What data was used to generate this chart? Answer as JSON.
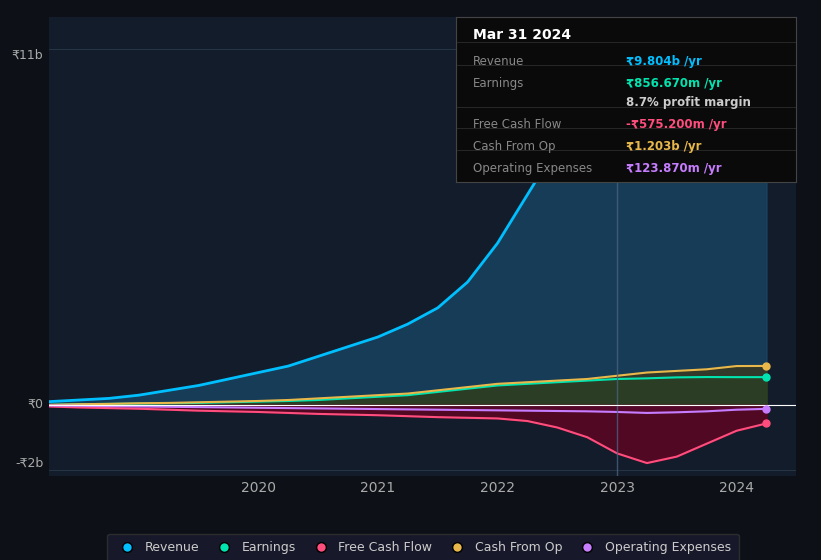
{
  "background_color": "#0d1117",
  "plot_bg_color": "#131c2b",
  "ylabel_top": "₹11b",
  "ylabel_zero": "₹0",
  "ylabel_bottom": "-₹2b",
  "x_ticks": [
    "2020",
    "2021",
    "2022",
    "2023",
    "2024"
  ],
  "legend_items": [
    "Revenue",
    "Earnings",
    "Free Cash Flow",
    "Cash From Op",
    "Operating Expenses"
  ],
  "legend_colors": [
    "#00bfff",
    "#00e5b0",
    "#ff4d7d",
    "#e8b84b",
    "#c77dff"
  ],
  "line_colors": {
    "revenue": "#00bfff",
    "earnings": "#00e5b0",
    "free_cash_flow": "#ff4d7d",
    "cash_from_op": "#e8b84b",
    "operating_expenses": "#c77dff"
  },
  "fill_colors": {
    "revenue": "#1a4a6b",
    "earnings": "#004d44",
    "free_cash_flow": "#6b0020",
    "cash_from_op": "#4d3800",
    "operating_expenses": "#3d2060"
  },
  "info_box": {
    "bg": "#0a0a0a",
    "border": "#444444",
    "title": "Mar 31 2024",
    "rows": [
      {
        "label": "Revenue",
        "value": "₹9.804b /yr",
        "value_color": "#00bfff",
        "bold_part": "₹9.804b"
      },
      {
        "label": "Earnings",
        "value": "₹856.670m /yr",
        "value_color": "#00e5b0",
        "bold_part": "₹856.670m"
      },
      {
        "label": "",
        "value": "8.7% profit margin",
        "value_color": "#cccccc",
        "bold_part": "8.7%"
      },
      {
        "label": "Free Cash Flow",
        "value": "-₹575.200m /yr",
        "value_color": "#ff4d7d",
        "bold_part": "-₹575.200m"
      },
      {
        "label": "Cash From Op",
        "value": "₹1.203b /yr",
        "value_color": "#e8b84b",
        "bold_part": "₹1.203b"
      },
      {
        "label": "Operating Expenses",
        "value": "₹123.870m /yr",
        "value_color": "#c77dff",
        "bold_part": "₹123.870m"
      }
    ]
  },
  "x_data": [
    2018.25,
    2018.5,
    2018.75,
    2019.0,
    2019.25,
    2019.5,
    2019.75,
    2020.0,
    2020.25,
    2020.5,
    2020.75,
    2021.0,
    2021.25,
    2021.5,
    2021.75,
    2022.0,
    2022.25,
    2022.5,
    2022.75,
    2023.0,
    2023.25,
    2023.5,
    2023.75,
    2024.0,
    2024.25
  ],
  "revenue": [
    0.1,
    0.15,
    0.2,
    0.3,
    0.45,
    0.6,
    0.8,
    1.0,
    1.2,
    1.5,
    1.8,
    2.1,
    2.5,
    3.0,
    3.8,
    5.0,
    6.5,
    8.0,
    9.5,
    11.0,
    10.5,
    10.2,
    9.9,
    9.8,
    9.8
  ],
  "earnings": [
    0.0,
    0.02,
    0.03,
    0.04,
    0.05,
    0.06,
    0.08,
    0.1,
    0.12,
    0.15,
    0.2,
    0.25,
    0.3,
    0.4,
    0.5,
    0.6,
    0.65,
    0.7,
    0.75,
    0.8,
    0.82,
    0.85,
    0.86,
    0.857,
    0.857
  ],
  "free_cash_flow": [
    -0.05,
    -0.08,
    -0.1,
    -0.12,
    -0.15,
    -0.18,
    -0.2,
    -0.22,
    -0.25,
    -0.28,
    -0.3,
    -0.32,
    -0.35,
    -0.38,
    -0.4,
    -0.42,
    -0.5,
    -0.7,
    -1.0,
    -1.5,
    -1.8,
    -1.6,
    -1.2,
    -0.8,
    -0.575
  ],
  "cash_from_op": [
    0.0,
    0.02,
    0.03,
    0.05,
    0.06,
    0.08,
    0.1,
    0.12,
    0.15,
    0.2,
    0.25,
    0.3,
    0.35,
    0.45,
    0.55,
    0.65,
    0.7,
    0.75,
    0.8,
    0.9,
    1.0,
    1.05,
    1.1,
    1.2,
    1.203
  ],
  "operating_expenses": [
    -0.02,
    -0.03,
    -0.04,
    -0.05,
    -0.06,
    -0.07,
    -0.08,
    -0.09,
    -0.1,
    -0.11,
    -0.12,
    -0.13,
    -0.14,
    -0.15,
    -0.16,
    -0.17,
    -0.18,
    -0.19,
    -0.2,
    -0.22,
    -0.25,
    -0.23,
    -0.2,
    -0.15,
    -0.124
  ],
  "ylim": [
    -2.2,
    12.0
  ],
  "xlim": [
    2018.25,
    2024.5
  ],
  "vertical_line_x": 2023.0,
  "grid_color": "#2a3a4a",
  "zero_line_color": "#ffffff"
}
